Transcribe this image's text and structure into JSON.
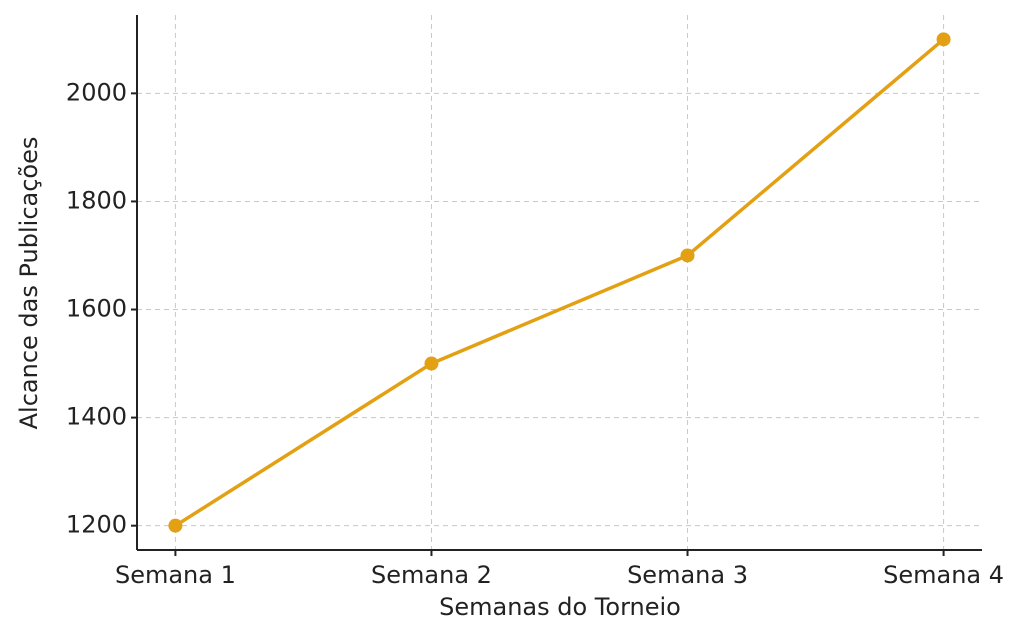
{
  "chart_data": {
    "type": "line",
    "x_label": "Semanas do Torneio",
    "y_label": "Alcance das Publicações",
    "categories": [
      "Semana 1",
      "Semana 2",
      "Semana 3",
      "Semana 4"
    ],
    "series": [
      {
        "name": "Alcance",
        "color": "#e3a012",
        "values": [
          1200,
          1500,
          1700,
          2100
        ]
      }
    ],
    "ylim": [
      1155,
      2145
    ],
    "yticks": [
      1200,
      1400,
      1600,
      1800,
      2000
    ],
    "grid": true
  }
}
